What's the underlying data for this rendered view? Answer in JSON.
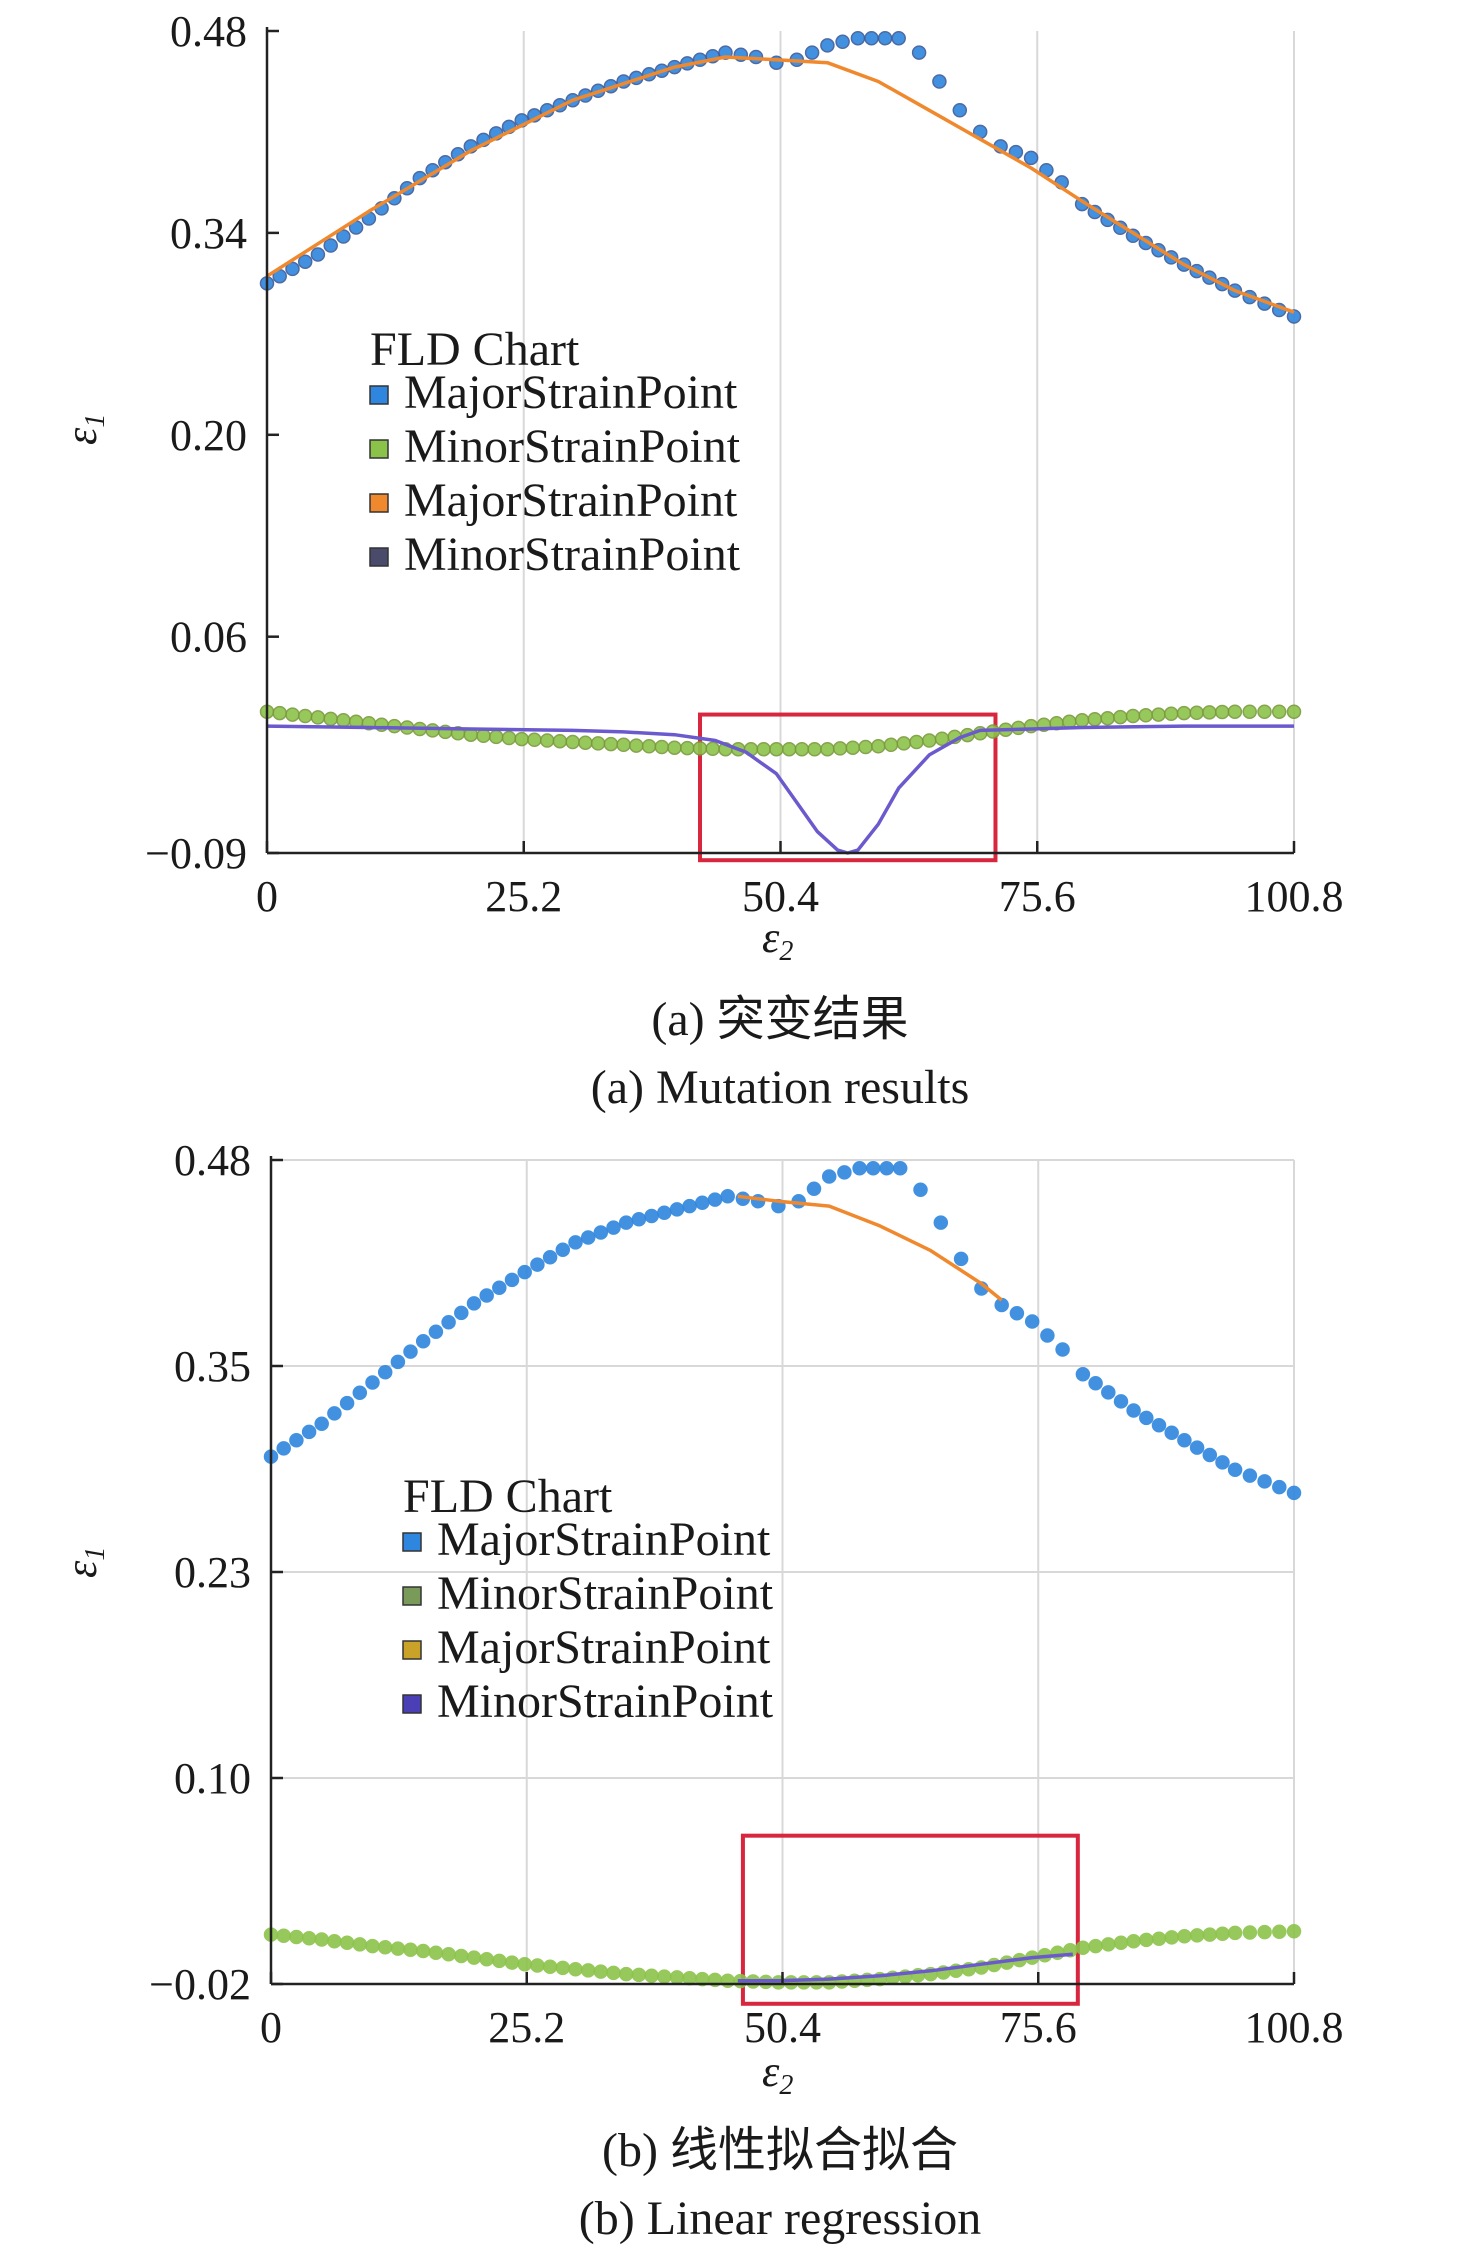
{
  "chart_data": [
    {
      "type": "line",
      "panel": "a",
      "legend_title": "FLD Chart",
      "ylabel": "ε",
      "ylabel_sub": "1",
      "xlabel": "ε",
      "xlabel_sub": "2",
      "caption_cn": "(a) 突变结果",
      "caption_en": "(a) Mutation results",
      "xlim": [
        0,
        100.8
      ],
      "ylim": [
        -0.09,
        0.48
      ],
      "xticks": [
        "0",
        "25.2",
        "50.4",
        "75.6",
        "100.8"
      ],
      "yticks": [
        "0.48",
        "0.34",
        "0.20",
        "0.06",
        "−0.09"
      ],
      "ytick_values": [
        0.48,
        0.34,
        0.2,
        0.06,
        -0.09
      ],
      "grid": "vertical",
      "legend_position": "center-left",
      "highlight_box": {
        "x": [
          42.5,
          71.5
        ],
        "y": [
          -0.095,
          0.006
        ],
        "color": "#d7263d"
      },
      "series": [
        {
          "name": "MajorStrainPoint",
          "style": "points",
          "color": "#2e86de",
          "edge": "#3a5a9a",
          "x": [
            0,
            5,
            10,
            15,
            20,
            25,
            30,
            35,
            40,
            45,
            48,
            50,
            52,
            55,
            58,
            62,
            64,
            66,
            68,
            70,
            72,
            75,
            78,
            80,
            85,
            90,
            95,
            100.8
          ],
          "y": [
            0.305,
            0.325,
            0.35,
            0.378,
            0.4,
            0.418,
            0.432,
            0.445,
            0.455,
            0.465,
            0.462,
            0.458,
            0.46,
            0.47,
            0.475,
            0.475,
            0.465,
            0.445,
            0.425,
            0.41,
            0.4,
            0.392,
            0.375,
            0.36,
            0.338,
            0.318,
            0.3,
            0.282
          ]
        },
        {
          "name": "MinorStrainPoint",
          "style": "points",
          "color": "#8bc34a",
          "edge": "#7a9a3a",
          "x": [
            0,
            5,
            10,
            15,
            20,
            25,
            30,
            35,
            40,
            45,
            50,
            55,
            60,
            65,
            70,
            75,
            80,
            85,
            90,
            95,
            100.8
          ],
          "y": [
            0.008,
            0.004,
            0.0,
            -0.004,
            -0.008,
            -0.011,
            -0.013,
            -0.015,
            -0.017,
            -0.018,
            -0.018,
            -0.018,
            -0.016,
            -0.012,
            -0.007,
            -0.002,
            0.002,
            0.005,
            0.007,
            0.008,
            0.008
          ]
        },
        {
          "name": "MajorStrainPoint",
          "style": "line",
          "color": "#f0892d",
          "x": [
            0,
            10,
            20,
            30,
            40,
            45,
            50,
            55,
            60,
            65,
            70,
            75,
            80,
            85,
            90,
            95,
            100.8
          ],
          "y": [
            0.31,
            0.355,
            0.397,
            0.432,
            0.455,
            0.462,
            0.46,
            0.458,
            0.445,
            0.425,
            0.405,
            0.385,
            0.362,
            0.34,
            0.318,
            0.3,
            0.285
          ]
        },
        {
          "name": "MinorStrainPoint",
          "style": "line",
          "color": "#6a5acd",
          "x": [
            0,
            10,
            20,
            30,
            35,
            40,
            44,
            47,
            50,
            52,
            54,
            56,
            57,
            58,
            60,
            62,
            65,
            68,
            70,
            75,
            80,
            90,
            100.8
          ],
          "y": [
            -0.002,
            -0.003,
            -0.004,
            -0.005,
            -0.006,
            -0.008,
            -0.012,
            -0.02,
            -0.035,
            -0.055,
            -0.075,
            -0.088,
            -0.09,
            -0.088,
            -0.07,
            -0.045,
            -0.022,
            -0.01,
            -0.005,
            -0.004,
            -0.003,
            -0.002,
            -0.002
          ]
        }
      ],
      "legend": [
        "MajorStrainPoint",
        "MinorStrainPoint",
        "MajorStrainPoint",
        "MinorStrainPoint"
      ],
      "legend_colors": [
        "#2e86de",
        "#8bc34a",
        "#f0892d",
        "#4a4a6a"
      ]
    },
    {
      "type": "line",
      "panel": "b",
      "legend_title": "FLD Chart",
      "ylabel": "ε",
      "ylabel_sub": "1",
      "xlabel": "ε",
      "xlabel_sub": "2",
      "caption_cn": "(b) 线性拟合拟合",
      "caption_en": "(b) Linear regression",
      "xlim": [
        0,
        100.8
      ],
      "ylim": [
        -0.02,
        0.48
      ],
      "xticks": [
        "0",
        "25.2",
        "50.4",
        "75.6",
        "100.8"
      ],
      "yticks": [
        "0.48",
        "0.35",
        "0.23",
        "0.10",
        "−0.02"
      ],
      "ytick_values": [
        0.48,
        0.355,
        0.23,
        0.105,
        -0.02
      ],
      "grid": "both",
      "legend_position": "center-left",
      "highlight_box": {
        "x": [
          46.5,
          79.5
        ],
        "y": [
          -0.032,
          0.07
        ],
        "color": "#d7263d"
      },
      "series": [
        {
          "name": "MajorStrainPoint",
          "style": "points",
          "color": "#2e86de",
          "edge": "#2e86de",
          "x": [
            0,
            5,
            10,
            15,
            20,
            25,
            30,
            35,
            40,
            45,
            48,
            50,
            52,
            55,
            58,
            62,
            64,
            66,
            68,
            70,
            72,
            75,
            78,
            80,
            85,
            90,
            95,
            100.8
          ],
          "y": [
            0.3,
            0.32,
            0.345,
            0.37,
            0.393,
            0.412,
            0.43,
            0.442,
            0.45,
            0.458,
            0.455,
            0.452,
            0.455,
            0.47,
            0.475,
            0.475,
            0.462,
            0.442,
            0.42,
            0.402,
            0.392,
            0.382,
            0.365,
            0.35,
            0.328,
            0.31,
            0.292,
            0.278
          ]
        },
        {
          "name": "MinorStrainPoint",
          "style": "points",
          "color": "#8bc34a",
          "edge": "#8bc34a",
          "x": [
            0,
            5,
            10,
            15,
            20,
            25,
            30,
            35,
            40,
            45,
            50,
            55,
            60,
            65,
            70,
            75,
            80,
            85,
            90,
            95,
            100.8
          ],
          "y": [
            0.01,
            0.007,
            0.003,
            0.0,
            -0.004,
            -0.008,
            -0.011,
            -0.014,
            -0.016,
            -0.018,
            -0.019,
            -0.019,
            -0.017,
            -0.014,
            -0.01,
            -0.004,
            0.002,
            0.006,
            0.009,
            0.011,
            0.012
          ]
        },
        {
          "name": "MajorStrainPoint",
          "style": "line",
          "color": "#f0892d",
          "x": [
            46,
            50,
            55,
            60,
            65,
            70,
            72
          ],
          "y": [
            0.458,
            0.455,
            0.452,
            0.44,
            0.425,
            0.405,
            0.395
          ]
        },
        {
          "name": "MinorStrainPoint",
          "style": "line",
          "color": "#6a5acd",
          "x": [
            46,
            50,
            55,
            60,
            65,
            70,
            75,
            79
          ],
          "y": [
            -0.018,
            -0.018,
            -0.017,
            -0.015,
            -0.012,
            -0.008,
            -0.004,
            -0.002
          ]
        }
      ],
      "legend": [
        "MajorStrainPoint",
        "MinorStrainPoint",
        "MajorStrainPoint",
        "MinorStrainPoint"
      ],
      "legend_colors": [
        "#2e86de",
        "#7a9a5a",
        "#c9a227",
        "#4b3fb5"
      ]
    }
  ]
}
